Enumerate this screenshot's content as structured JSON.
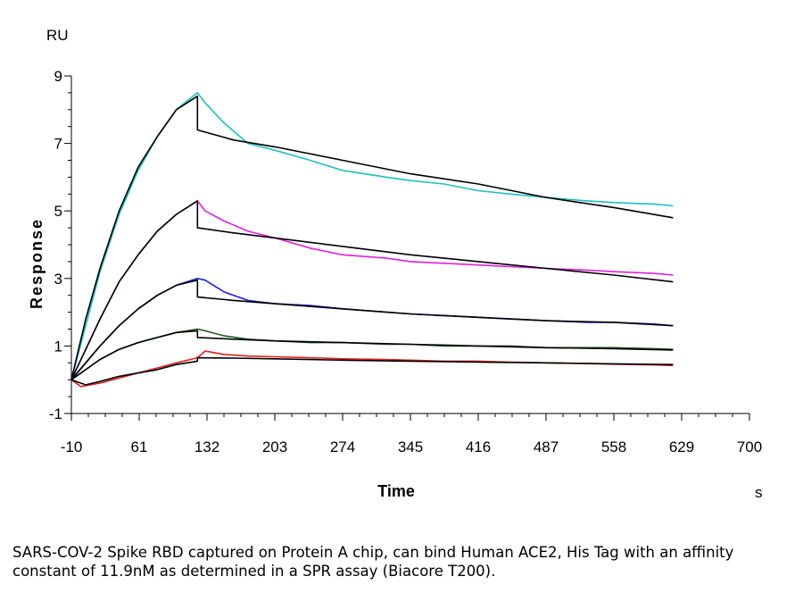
{
  "chart_data": {
    "type": "line",
    "xlabel": "Time",
    "x_unit": "s",
    "ylabel": "Response",
    "y_unit": "RU",
    "xlim": [
      -10,
      700
    ],
    "ylim": [
      -1,
      9
    ],
    "x_ticks": [
      -10,
      61,
      132,
      203,
      274,
      345,
      416,
      487,
      558,
      629,
      700
    ],
    "y_ticks": [
      -1,
      1,
      3,
      5,
      7,
      9
    ],
    "grid": false,
    "legend": "none",
    "series": [
      {
        "color": "#1fbfbf",
        "x": [
          -10,
          5,
          20,
          40,
          60,
          80,
          100,
          122,
          130,
          150,
          175,
          203,
          240,
          274,
          320,
          345,
          380,
          416,
          450,
          487,
          530,
          558,
          600,
          620
        ],
        "y": [
          0,
          1.6,
          3.2,
          4.9,
          6.2,
          7.2,
          8.0,
          8.5,
          8.2,
          7.6,
          7.0,
          6.8,
          6.5,
          6.2,
          6.0,
          5.9,
          5.8,
          5.6,
          5.5,
          5.4,
          5.3,
          5.25,
          5.2,
          5.15
        ]
      },
      {
        "color": "#e020e0",
        "x": [
          -10,
          5,
          20,
          40,
          60,
          80,
          100,
          122,
          130,
          150,
          175,
          203,
          240,
          274,
          320,
          345,
          380,
          416,
          450,
          487,
          530,
          558,
          600,
          620
        ],
        "y": [
          0,
          0.9,
          1.8,
          2.9,
          3.7,
          4.4,
          4.9,
          5.3,
          5.0,
          4.7,
          4.4,
          4.2,
          3.9,
          3.7,
          3.6,
          3.5,
          3.45,
          3.4,
          3.35,
          3.3,
          3.25,
          3.2,
          3.15,
          3.1
        ]
      },
      {
        "color": "#2020d8",
        "x": [
          -10,
          5,
          20,
          40,
          60,
          80,
          100,
          122,
          130,
          150,
          175,
          203,
          240,
          274,
          320,
          345,
          380,
          416,
          450,
          487,
          530,
          558,
          600,
          620
        ],
        "y": [
          0,
          0.5,
          1.0,
          1.6,
          2.1,
          2.5,
          2.8,
          3.0,
          2.95,
          2.6,
          2.35,
          2.25,
          2.2,
          2.1,
          2.0,
          1.95,
          1.9,
          1.85,
          1.8,
          1.75,
          1.7,
          1.7,
          1.65,
          1.6
        ]
      },
      {
        "color": "#1e5a1e",
        "x": [
          -10,
          5,
          20,
          40,
          60,
          80,
          100,
          122,
          130,
          150,
          175,
          203,
          240,
          274,
          320,
          345,
          380,
          416,
          450,
          487,
          530,
          558,
          600,
          620
        ],
        "y": [
          0,
          0.3,
          0.6,
          0.9,
          1.1,
          1.25,
          1.4,
          1.5,
          1.45,
          1.3,
          1.2,
          1.15,
          1.1,
          1.1,
          1.05,
          1.05,
          1.0,
          1.0,
          1.0,
          0.95,
          0.95,
          0.95,
          0.92,
          0.9
        ]
      },
      {
        "color": "#e02020",
        "x": [
          -10,
          0,
          20,
          40,
          60,
          80,
          100,
          122,
          130,
          150,
          175,
          203,
          240,
          274,
          320,
          345,
          380,
          416,
          450,
          487,
          530,
          558,
          600,
          620
        ],
        "y": [
          0,
          -0.2,
          -0.1,
          0.05,
          0.2,
          0.35,
          0.5,
          0.65,
          0.85,
          0.75,
          0.7,
          0.68,
          0.65,
          0.62,
          0.6,
          0.58,
          0.55,
          0.55,
          0.52,
          0.5,
          0.48,
          0.46,
          0.44,
          0.42
        ]
      },
      {
        "color": "#000000",
        "x": [
          -10,
          5,
          20,
          40,
          60,
          80,
          100,
          122,
          122,
          160,
          203,
          274,
          345,
          416,
          487,
          558,
          620
        ],
        "y": [
          0,
          1.8,
          3.3,
          5.0,
          6.3,
          7.2,
          8.0,
          8.4,
          7.4,
          7.1,
          6.9,
          6.5,
          6.1,
          5.8,
          5.4,
          5.1,
          4.8
        ]
      },
      {
        "color": "#000000",
        "x": [
          -10,
          5,
          20,
          40,
          60,
          80,
          100,
          122,
          122,
          160,
          203,
          274,
          345,
          416,
          487,
          558,
          620
        ],
        "y": [
          0,
          0.9,
          1.8,
          2.9,
          3.7,
          4.4,
          4.9,
          5.3,
          4.5,
          4.35,
          4.2,
          3.95,
          3.7,
          3.5,
          3.3,
          3.1,
          2.9
        ]
      },
      {
        "color": "#000000",
        "x": [
          -10,
          5,
          20,
          40,
          60,
          80,
          100,
          122,
          122,
          160,
          203,
          274,
          345,
          416,
          487,
          558,
          620
        ],
        "y": [
          0,
          0.5,
          1.0,
          1.6,
          2.1,
          2.5,
          2.8,
          2.95,
          2.45,
          2.35,
          2.25,
          2.1,
          1.95,
          1.85,
          1.75,
          1.7,
          1.6
        ]
      },
      {
        "color": "#000000",
        "x": [
          -10,
          5,
          20,
          40,
          60,
          80,
          100,
          122,
          122,
          160,
          203,
          274,
          345,
          416,
          487,
          558,
          620
        ],
        "y": [
          0,
          0.3,
          0.6,
          0.9,
          1.1,
          1.25,
          1.4,
          1.45,
          1.25,
          1.2,
          1.15,
          1.1,
          1.05,
          1.0,
          0.95,
          0.92,
          0.88
        ]
      },
      {
        "color": "#000000",
        "x": [
          -10,
          5,
          20,
          40,
          60,
          80,
          100,
          122,
          122,
          160,
          203,
          274,
          345,
          416,
          487,
          558,
          620
        ],
        "y": [
          0,
          -0.15,
          -0.05,
          0.1,
          0.2,
          0.3,
          0.45,
          0.55,
          0.65,
          0.64,
          0.62,
          0.58,
          0.55,
          0.52,
          0.5,
          0.47,
          0.45
        ]
      }
    ]
  },
  "caption": "SARS-COV-2 Spike RBD captured on Protein A chip, can bind Human ACE2, His Tag with an affinity constant of 11.9nM as determined in a SPR assay (Biacore T200)."
}
